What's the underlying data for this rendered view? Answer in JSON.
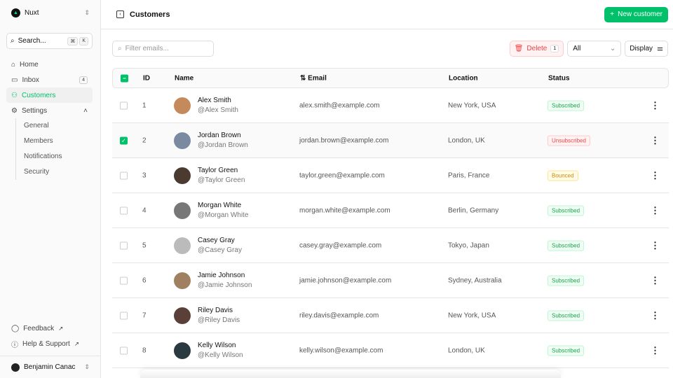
{
  "sidebar": {
    "team": "Nuxt",
    "search": "Search...",
    "kbd": [
      "⌘",
      "K"
    ],
    "items": [
      {
        "label": "Home",
        "icon": "home-icon"
      },
      {
        "label": "Inbox",
        "icon": "inbox-icon",
        "badge": "4"
      },
      {
        "label": "Customers",
        "icon": "users-icon",
        "active": true
      },
      {
        "label": "Settings",
        "icon": "gear-icon"
      }
    ],
    "settings_sub": [
      "General",
      "Members",
      "Notifications",
      "Security"
    ],
    "footer": [
      "Feedback",
      "Help & Support"
    ],
    "user": "Benjamin Canac"
  },
  "header": {
    "title": "Customers",
    "new_button": "New customer"
  },
  "toolbar": {
    "filter_placeholder": "Filter emails...",
    "delete": "Delete",
    "delete_count": "1",
    "status_filter": "All",
    "display": "Display"
  },
  "table": {
    "columns": [
      "ID",
      "Name",
      "Email",
      "Location",
      "Status"
    ],
    "rows": [
      {
        "id": "1",
        "name": "Alex Smith",
        "handle": "@Alex Smith",
        "email": "alex.smith@example.com",
        "location": "New York, USA",
        "status": "Subscribed",
        "selected": false,
        "avatar": "#c58a5c"
      },
      {
        "id": "2",
        "name": "Jordan Brown",
        "handle": "@Jordan Brown",
        "email": "jordan.brown@example.com",
        "location": "London, UK",
        "status": "Unsubscribed",
        "selected": true,
        "avatar": "#7a8aa0"
      },
      {
        "id": "3",
        "name": "Taylor Green",
        "handle": "@Taylor Green",
        "email": "taylor.green@example.com",
        "location": "Paris, France",
        "status": "Bounced",
        "selected": false,
        "avatar": "#4a3a30"
      },
      {
        "id": "4",
        "name": "Morgan White",
        "handle": "@Morgan White",
        "email": "morgan.white@example.com",
        "location": "Berlin, Germany",
        "status": "Subscribed",
        "selected": false,
        "avatar": "#777"
      },
      {
        "id": "5",
        "name": "Casey Gray",
        "handle": "@Casey Gray",
        "email": "casey.gray@example.com",
        "location": "Tokyo, Japan",
        "status": "Subscribed",
        "selected": false,
        "avatar": "#bbb"
      },
      {
        "id": "6",
        "name": "Jamie Johnson",
        "handle": "@Jamie Johnson",
        "email": "jamie.johnson@example.com",
        "location": "Sydney, Australia",
        "status": "Subscribed",
        "selected": false,
        "avatar": "#a08060"
      },
      {
        "id": "7",
        "name": "Riley Davis",
        "handle": "@Riley Davis",
        "email": "riley.davis@example.com",
        "location": "New York, USA",
        "status": "Subscribed",
        "selected": false,
        "avatar": "#5a4038"
      },
      {
        "id": "8",
        "name": "Kelly Wilson",
        "handle": "@Kelly Wilson",
        "email": "kelly.wilson@example.com",
        "location": "London, UK",
        "status": "Subscribed",
        "selected": false,
        "avatar": "#2a3a40"
      }
    ]
  },
  "colors": {
    "accent": "#00c16a",
    "danger": "#ef4444"
  }
}
